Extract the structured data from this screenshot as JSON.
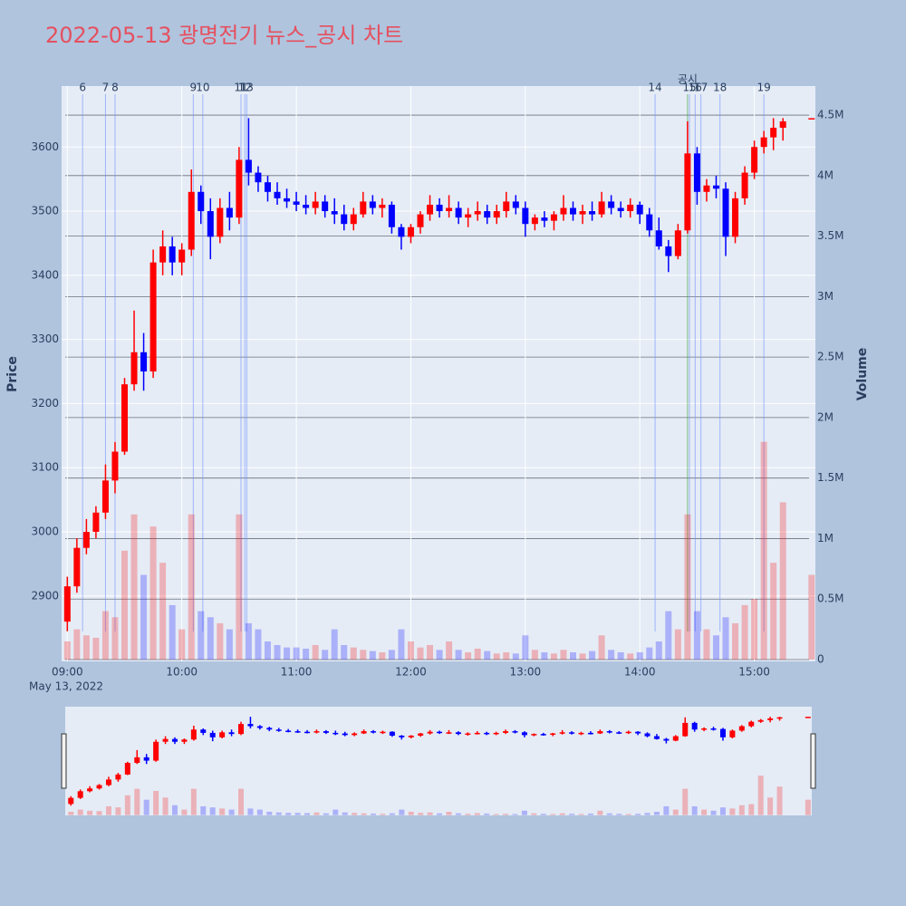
{
  "chart_data": {
    "type": "candlestick",
    "title": "2022-05-13 광명전기 뉴스_공시 차트",
    "y_label": "Price",
    "y2_label": "Volume",
    "x_date_label": "May 13, 2022",
    "increasing_color": "#ff0000",
    "decreasing_color": "#0000ff",
    "grid": true,
    "xlim": [
      "2022-05-13 08:57",
      "2022-05-13 15:32"
    ],
    "xticks": [
      {
        "value": "2022-05-13 09:00",
        "label": "09:00"
      },
      {
        "value": "2022-05-13 10:00",
        "label": "10:00"
      },
      {
        "value": "2022-05-13 11:00",
        "label": "11:00"
      },
      {
        "value": "2022-05-13 12:00",
        "label": "12:00"
      },
      {
        "value": "2022-05-13 13:00",
        "label": "13:00"
      },
      {
        "value": "2022-05-13 14:00",
        "label": "14:00"
      },
      {
        "value": "2022-05-13 15:00",
        "label": "15:00"
      }
    ],
    "ylim": [
      2798,
      3695
    ],
    "yticks": [
      2900,
      3000,
      3100,
      3200,
      3300,
      3400,
      3500,
      3600
    ],
    "y2lim": [
      -15000,
      4740000
    ],
    "y2ticks": [
      0,
      {
        "value": 500000,
        "label": "0.5M"
      },
      {
        "value": 1000000,
        "label": "1M"
      },
      {
        "value": 1500000,
        "label": "1.5M"
      },
      {
        "value": 2000000,
        "label": "2M"
      },
      {
        "value": 2500000,
        "label": "2.5M"
      },
      {
        "value": 3000000,
        "label": "3M"
      },
      {
        "value": 3500000,
        "label": "3.5M"
      },
      {
        "value": 4000000,
        "label": "4M"
      },
      {
        "value": 4500000,
        "label": "4.5M"
      }
    ],
    "news": [
      {
        "label": "6",
        "x": "2022-05-13 09:08"
      },
      {
        "label": "7",
        "x": "2022-05-13 09:20"
      },
      {
        "label": "8",
        "x": "2022-05-13 09:25"
      },
      {
        "label": "9",
        "x": "2022-05-13 10:06"
      },
      {
        "label": "10",
        "x": "2022-05-13 10:11"
      },
      {
        "label": "11",
        "x": "2022-05-13 10:31"
      },
      {
        "label": "12",
        "x": "2022-05-13 10:33"
      },
      {
        "label": "13",
        "x": "2022-05-13 10:34"
      },
      {
        "label": "14",
        "x": "2022-05-13 14:08"
      },
      {
        "label": "15",
        "x": "2022-05-13 14:26"
      },
      {
        "label": "16",
        "x": "2022-05-13 14:29"
      },
      {
        "label": "17",
        "x": "2022-05-13 14:32"
      },
      {
        "label": "18",
        "x": "2022-05-13 14:42"
      },
      {
        "label": "19",
        "x": "2022-05-13 15:05"
      }
    ],
    "disclosures": [
      {
        "label": "공시",
        "x": "2022-05-13 14:25"
      }
    ],
    "x": [
      "2022-05-13 09:00",
      "2022-05-13 09:05",
      "2022-05-13 09:10",
      "2022-05-13 09:15",
      "2022-05-13 09:20",
      "2022-05-13 09:25",
      "2022-05-13 09:30",
      "2022-05-13 09:35",
      "2022-05-13 09:40",
      "2022-05-13 09:45",
      "2022-05-13 09:50",
      "2022-05-13 09:55",
      "2022-05-13 10:00",
      "2022-05-13 10:05",
      "2022-05-13 10:10",
      "2022-05-13 10:15",
      "2022-05-13 10:20",
      "2022-05-13 10:25",
      "2022-05-13 10:30",
      "2022-05-13 10:35",
      "2022-05-13 10:40",
      "2022-05-13 10:45",
      "2022-05-13 10:50",
      "2022-05-13 10:55",
      "2022-05-13 11:00",
      "2022-05-13 11:05",
      "2022-05-13 11:10",
      "2022-05-13 11:15",
      "2022-05-13 11:20",
      "2022-05-13 11:25",
      "2022-05-13 11:30",
      "2022-05-13 11:35",
      "2022-05-13 11:40",
      "2022-05-13 11:45",
      "2022-05-13 11:50",
      "2022-05-13 11:55",
      "2022-05-13 12:00",
      "2022-05-13 12:05",
      "2022-05-13 12:10",
      "2022-05-13 12:15",
      "2022-05-13 12:20",
      "2022-05-13 12:25",
      "2022-05-13 12:30",
      "2022-05-13 12:35",
      "2022-05-13 12:40",
      "2022-05-13 12:45",
      "2022-05-13 12:50",
      "2022-05-13 12:55",
      "2022-05-13 13:00",
      "2022-05-13 13:05",
      "2022-05-13 13:10",
      "2022-05-13 13:15",
      "2022-05-13 13:20",
      "2022-05-13 13:25",
      "2022-05-13 13:30",
      "2022-05-13 13:35",
      "2022-05-13 13:40",
      "2022-05-13 13:45",
      "2022-05-13 13:50",
      "2022-05-13 13:55",
      "2022-05-13 14:00",
      "2022-05-13 14:05",
      "2022-05-13 14:10",
      "2022-05-13 14:15",
      "2022-05-13 14:20",
      "2022-05-13 14:25",
      "2022-05-13 14:30",
      "2022-05-13 14:35",
      "2022-05-13 14:40",
      "2022-05-13 14:45",
      "2022-05-13 14:50",
      "2022-05-13 14:55",
      "2022-05-13 15:00",
      "2022-05-13 15:05",
      "2022-05-13 15:10",
      "2022-05-13 15:15",
      "2022-05-13 15:30"
    ],
    "open": [
      2860,
      2915,
      2975,
      3000,
      3030,
      3080,
      3125,
      3230,
      3280,
      3250,
      3420,
      3445,
      3420,
      3440,
      3530,
      3500,
      3460,
      3505,
      3490,
      3580,
      3560,
      3545,
      3530,
      3520,
      3515,
      3510,
      3505,
      3515,
      3500,
      3495,
      3480,
      3495,
      3515,
      3505,
      3510,
      3475,
      3460,
      3475,
      3495,
      3510,
      3500,
      3505,
      3490,
      3495,
      3500,
      3490,
      3500,
      3515,
      3505,
      3480,
      3490,
      3485,
      3495,
      3505,
      3495,
      3500,
      3495,
      3515,
      3505,
      3500,
      3510,
      3495,
      3470,
      3445,
      3430,
      3470,
      3590,
      3530,
      3540,
      3535,
      3460,
      3520,
      3560,
      3600,
      3615,
      3630,
      3645
    ],
    "high": [
      2930,
      2990,
      3020,
      3040,
      3105,
      3140,
      3240,
      3345,
      3310,
      3440,
      3470,
      3460,
      3450,
      3565,
      3540,
      3520,
      3520,
      3530,
      3600,
      3645,
      3570,
      3555,
      3545,
      3535,
      3530,
      3525,
      3530,
      3525,
      3520,
      3510,
      3505,
      3530,
      3525,
      3520,
      3515,
      3480,
      3480,
      3500,
      3525,
      3520,
      3525,
      3515,
      3505,
      3515,
      3510,
      3510,
      3530,
      3525,
      3515,
      3495,
      3500,
      3500,
      3525,
      3515,
      3510,
      3515,
      3530,
      3525,
      3515,
      3520,
      3515,
      3505,
      3490,
      3455,
      3480,
      3640,
      3600,
      3550,
      3555,
      3545,
      3530,
      3570,
      3610,
      3625,
      3645,
      3645,
      3645
    ],
    "low": [
      2845,
      2905,
      2965,
      2990,
      3020,
      3060,
      3120,
      3220,
      3220,
      3240,
      3400,
      3400,
      3400,
      3430,
      3480,
      3425,
      3450,
      3470,
      3480,
      3540,
      3530,
      3515,
      3510,
      3505,
      3500,
      3495,
      3495,
      3490,
      3480,
      3470,
      3470,
      3490,
      3495,
      3490,
      3465,
      3440,
      3450,
      3465,
      3485,
      3490,
      3490,
      3480,
      3475,
      3485,
      3480,
      3480,
      3490,
      3495,
      3460,
      3470,
      3475,
      3470,
      3485,
      3485,
      3480,
      3485,
      3490,
      3495,
      3490,
      3490,
      3480,
      3460,
      3440,
      3405,
      3425,
      3465,
      3510,
      3515,
      3520,
      3430,
      3450,
      3510,
      3550,
      3590,
      3595,
      3610,
      3645
    ],
    "close": [
      2915,
      2975,
      3000,
      3030,
      3080,
      3125,
      3230,
      3280,
      3250,
      3420,
      3445,
      3420,
      3440,
      3530,
      3500,
      3460,
      3505,
      3490,
      3580,
      3560,
      3545,
      3530,
      3520,
      3515,
      3510,
      3505,
      3515,
      3500,
      3495,
      3480,
      3495,
      3515,
      3505,
      3510,
      3475,
      3460,
      3475,
      3495,
      3510,
      3500,
      3505,
      3490,
      3495,
      3500,
      3490,
      3500,
      3515,
      3505,
      3480,
      3490,
      3485,
      3495,
      3505,
      3495,
      3500,
      3495,
      3515,
      3505,
      3500,
      3510,
      3495,
      3470,
      3445,
      3430,
      3470,
      3590,
      3530,
      3540,
      3535,
      3460,
      3520,
      3560,
      3600,
      3615,
      3630,
      3640,
      3645
    ],
    "volume": [
      150000,
      250000,
      200000,
      180000,
      400000,
      350000,
      900000,
      1200000,
      700000,
      1100000,
      800000,
      450000,
      250000,
      1200000,
      400000,
      350000,
      300000,
      250000,
      1200000,
      300000,
      250000,
      150000,
      120000,
      100000,
      100000,
      90000,
      120000,
      80000,
      250000,
      120000,
      100000,
      80000,
      70000,
      60000,
      80000,
      250000,
      150000,
      100000,
      120000,
      80000,
      150000,
      80000,
      60000,
      90000,
      70000,
      50000,
      60000,
      50000,
      200000,
      80000,
      60000,
      50000,
      80000,
      60000,
      50000,
      70000,
      200000,
      80000,
      60000,
      50000,
      60000,
      100000,
      150000,
      400000,
      250000,
      1200000,
      400000,
      250000,
      200000,
      350000,
      300000,
      450000,
      500000,
      1800000,
      800000,
      1300000,
      700000
    ]
  }
}
